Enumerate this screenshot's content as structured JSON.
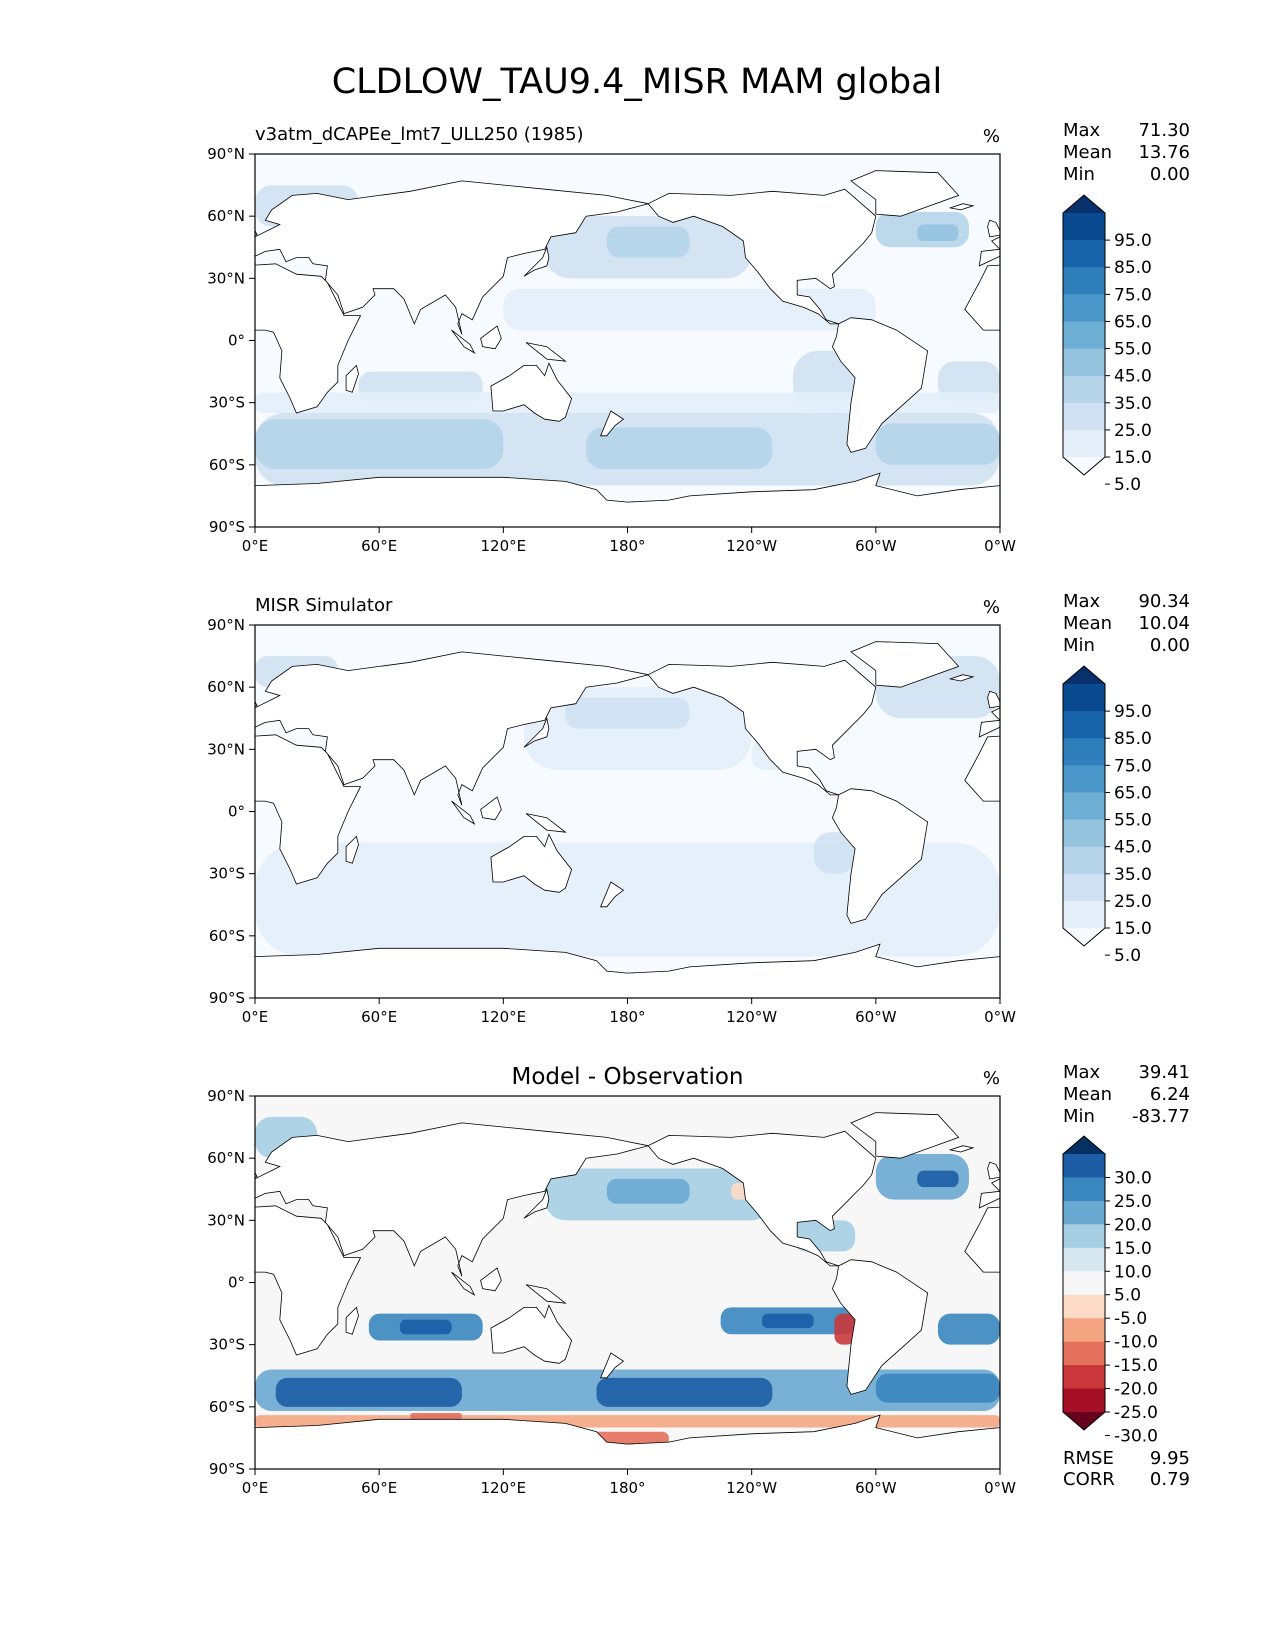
{
  "figure": {
    "title": "CLDLOW_TAU9.4_MISR MAM global",
    "background": "#ffffff"
  },
  "map_axes": {
    "x_ticks": [
      "0°E",
      "60°E",
      "120°E",
      "180°",
      "120°W",
      "60°W",
      "0°W"
    ],
    "y_ticks": [
      "90°N",
      "60°N",
      "30°N",
      "0°",
      "30°S",
      "60°S",
      "90°S"
    ],
    "lon_range": [
      0,
      360
    ],
    "lat_range": [
      -90,
      90
    ]
  },
  "chart_data": [
    {
      "type": "heatmap",
      "title": "v3atm_dCAPEe_lmt7_ULL250 (1985)",
      "units": "%",
      "stats": [
        {
          "label": "Max",
          "value": "71.30"
        },
        {
          "label": "Mean",
          "value": "13.76"
        },
        {
          "label": "Min",
          "value": "0.00"
        }
      ],
      "colorbar": {
        "ticks": [
          "95.0",
          "85.0",
          "75.0",
          "65.0",
          "55.0",
          "45.0",
          "35.0",
          "25.0",
          "15.0",
          "5.0"
        ],
        "colors": [
          "#f7fbff",
          "#e3eef9",
          "#cfe1f2",
          "#b5d4e9",
          "#93c3df",
          "#6daed5",
          "#4b97c9",
          "#2f7fbc",
          "#1864aa",
          "#0a4a90",
          "#08306b"
        ],
        "extend": "both"
      },
      "field": "model"
    },
    {
      "type": "heatmap",
      "title": "MISR Simulator",
      "units": "%",
      "stats": [
        {
          "label": "Max",
          "value": "90.34"
        },
        {
          "label": "Mean",
          "value": "10.04"
        },
        {
          "label": "Min",
          "value": "0.00"
        }
      ],
      "colorbar": {
        "ticks": [
          "95.0",
          "85.0",
          "75.0",
          "65.0",
          "55.0",
          "45.0",
          "35.0",
          "25.0",
          "15.0",
          "5.0"
        ],
        "colors": [
          "#f7fbff",
          "#e3eef9",
          "#cfe1f2",
          "#b5d4e9",
          "#93c3df",
          "#6daed5",
          "#4b97c9",
          "#2f7fbc",
          "#1864aa",
          "#0a4a90",
          "#08306b"
        ],
        "extend": "both"
      },
      "field": "obs"
    },
    {
      "type": "heatmap",
      "title": "Model - Observation",
      "units": "%",
      "stats": [
        {
          "label": "Max",
          "value": "39.41"
        },
        {
          "label": "Mean",
          "value": "6.24"
        },
        {
          "label": "Min",
          "value": "-83.77"
        }
      ],
      "extra_stats": [
        {
          "label": "RMSE",
          "value": "9.95"
        },
        {
          "label": "CORR",
          "value": "0.79"
        }
      ],
      "colorbar": {
        "ticks": [
          "30.0",
          "25.0",
          "20.0",
          "15.0",
          "10.0",
          "5.0",
          "-5.0",
          "-10.0",
          "-15.0",
          "-20.0",
          "-25.0",
          "-30.0"
        ],
        "colors": [
          "#67001f",
          "#a50f26",
          "#c9373a",
          "#e3705b",
          "#f4a582",
          "#fddbc7",
          "#f7f7f7",
          "#d7e8f1",
          "#a6cee3",
          "#6aa9d1",
          "#3a86bf",
          "#1c5da5",
          "#053061"
        ],
        "extend": "both"
      },
      "field": "diff"
    }
  ]
}
